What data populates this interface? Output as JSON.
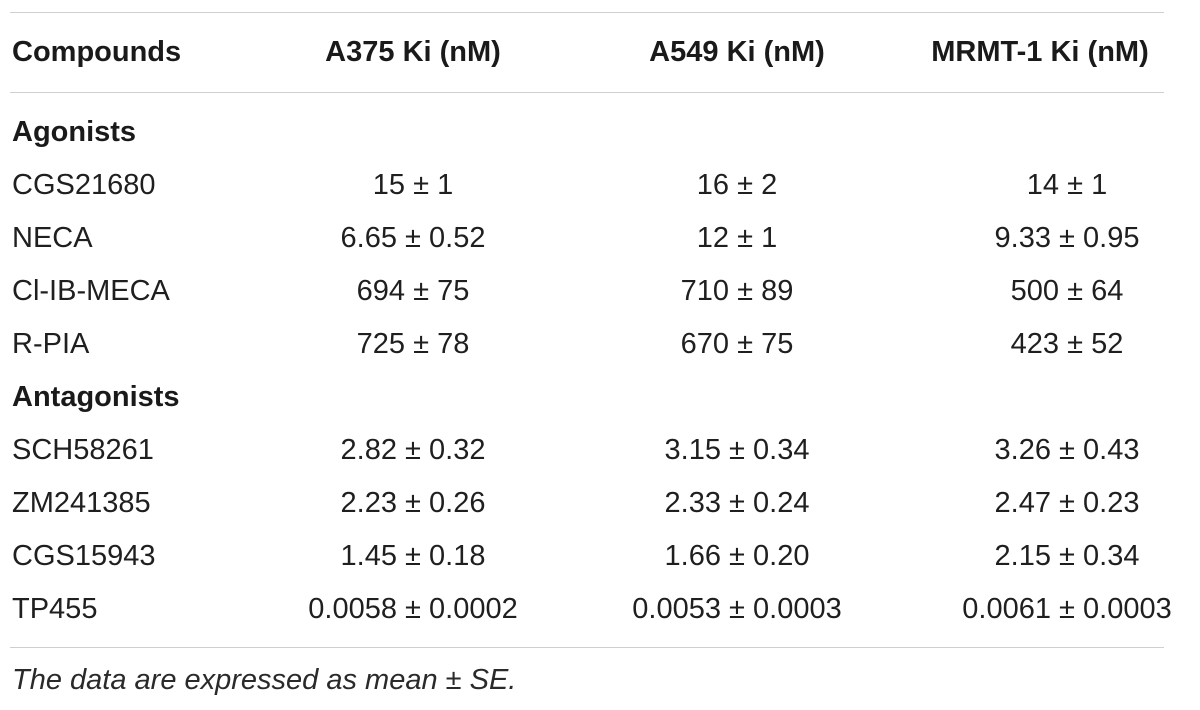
{
  "table": {
    "headers": [
      "Compounds",
      "A375 Ki (nM)",
      "A549 Ki (nM)",
      "MRMT-1 Ki (nM)"
    ],
    "groups": [
      {
        "label": "Agonists",
        "rows": [
          [
            "CGS21680",
            "15 ± 1",
            "16 ± 2",
            "14 ± 1"
          ],
          [
            "NECA",
            "6.65 ± 0.52",
            "12 ± 1",
            "9.33 ± 0.95"
          ],
          [
            "Cl-IB-MECA",
            "694 ± 75",
            "710 ± 89",
            "500 ± 64"
          ],
          [
            "R-PIA",
            "725 ± 78",
            "670 ± 75",
            "423 ± 52"
          ]
        ]
      },
      {
        "label": "Antagonists",
        "rows": [
          [
            "SCH58261",
            "2.82 ± 0.32",
            "3.15 ± 0.34",
            "3.26 ± 0.43"
          ],
          [
            "ZM241385",
            "2.23 ± 0.26",
            "2.33 ± 0.24",
            "2.47 ± 0.23"
          ],
          [
            "CGS15943",
            "1.45 ± 0.18",
            "1.66 ± 0.20",
            "2.15 ± 0.34"
          ],
          [
            "TP455",
            "0.0058 ± 0.0002",
            "0.0053 ± 0.0003",
            "0.0061 ± 0.0003"
          ]
        ]
      }
    ],
    "footnote": "The data are expressed as mean ± SE."
  }
}
